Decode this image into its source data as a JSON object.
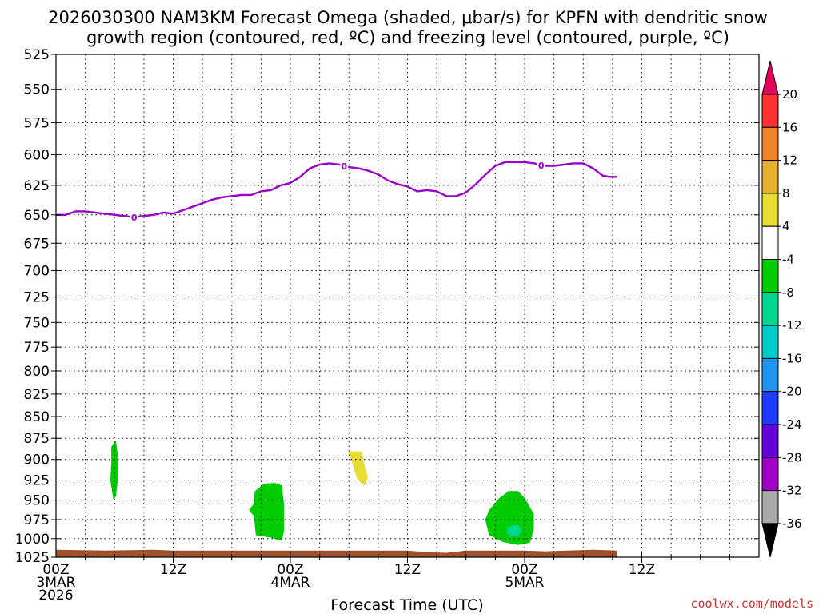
{
  "chart_data": {
    "type": "heatmap",
    "title_line1": "2026030300 NAM3KM Forecast Omega (shaded, μbar/s) for KPFN with dendritic snow",
    "title_line2": "growth region (contoured, red, ºC) and freezing level (contoured, purple, ºC)",
    "xlabel": "Forecast Time (UTC)",
    "ylabel": "",
    "x_range_hours": [
      0,
      72
    ],
    "y_range_hPa": [
      525,
      1025
    ],
    "y_ticks": [
      525,
      550,
      575,
      600,
      625,
      650,
      675,
      700,
      725,
      750,
      775,
      800,
      825,
      850,
      875,
      900,
      925,
      950,
      975,
      1000,
      1025
    ],
    "x_ticks": [
      {
        "hour": 0,
        "lines": [
          "00Z",
          "3MAR",
          "2026"
        ]
      },
      {
        "hour": 12,
        "lines": [
          "12Z"
        ]
      },
      {
        "hour": 24,
        "lines": [
          "00Z",
          "4MAR"
        ]
      },
      {
        "hour": 36,
        "lines": [
          "12Z"
        ]
      },
      {
        "hour": 48,
        "lines": [
          "00Z",
          "5MAR"
        ]
      },
      {
        "hour": 60,
        "lines": [
          "12Z"
        ]
      }
    ],
    "grid": true,
    "freezing_level": {
      "label": "0",
      "color": "#9900cc",
      "points": [
        [
          0,
          650
        ],
        [
          1,
          650
        ],
        [
          2,
          647
        ],
        [
          3,
          647
        ],
        [
          4,
          648
        ],
        [
          5,
          649
        ],
        [
          6,
          650
        ],
        [
          7,
          651
        ],
        [
          8,
          652
        ],
        [
          9,
          651
        ],
        [
          10,
          650
        ],
        [
          11,
          648
        ],
        [
          12,
          649
        ],
        [
          13,
          646
        ],
        [
          14,
          643
        ],
        [
          15,
          640
        ],
        [
          16,
          637
        ],
        [
          17,
          635
        ],
        [
          18,
          634
        ],
        [
          19,
          633
        ],
        [
          20,
          633
        ],
        [
          21,
          630
        ],
        [
          22,
          629
        ],
        [
          23,
          625
        ],
        [
          24,
          623
        ],
        [
          25,
          618
        ],
        [
          26,
          611
        ],
        [
          27,
          608
        ],
        [
          28,
          607
        ],
        [
          29,
          608
        ],
        [
          30,
          610
        ],
        [
          31,
          611
        ],
        [
          32,
          613
        ],
        [
          33,
          616
        ],
        [
          34,
          621
        ],
        [
          35,
          624
        ],
        [
          36,
          626
        ],
        [
          37,
          630
        ],
        [
          38,
          629
        ],
        [
          39,
          630
        ],
        [
          40,
          634
        ],
        [
          41,
          634
        ],
        [
          42,
          631
        ],
        [
          43,
          624
        ],
        [
          44,
          616
        ],
        [
          45,
          609
        ],
        [
          46,
          606
        ],
        [
          47,
          606
        ],
        [
          48,
          606
        ],
        [
          49,
          607
        ],
        [
          50,
          609
        ],
        [
          51,
          609
        ],
        [
          52,
          608
        ],
        [
          53,
          607
        ],
        [
          54,
          607
        ],
        [
          55,
          611
        ],
        [
          56,
          617
        ],
        [
          56.7,
          618
        ],
        [
          57.5,
          618
        ]
      ],
      "labels_at_hours": [
        8,
        29.5,
        49.7
      ]
    },
    "omega_regions": [
      {
        "level": "-4 to -8",
        "color": "#00cc00",
        "points": [
          [
            5.7,
            885
          ],
          [
            6.1,
            879
          ],
          [
            6.3,
            895
          ],
          [
            6.3,
            925
          ],
          [
            6.1,
            945
          ],
          [
            5.9,
            948
          ],
          [
            5.6,
            925
          ],
          [
            5.7,
            905
          ]
        ]
      },
      {
        "level": "4 to 8",
        "color": "#e6dc32",
        "points": [
          [
            30,
            891
          ],
          [
            31.3,
            891
          ],
          [
            31.5,
            905
          ],
          [
            31.9,
            922
          ],
          [
            31.6,
            931
          ],
          [
            30.9,
            924
          ],
          [
            30.4,
            905
          ]
        ]
      },
      {
        "level": "-4 to -8",
        "color": "#00cc00",
        "points": [
          [
            20.4,
            939
          ],
          [
            21.3,
            930
          ],
          [
            22.4,
            929
          ],
          [
            23.1,
            932
          ],
          [
            23.3,
            955
          ],
          [
            23.3,
            990
          ],
          [
            23.1,
            1002
          ],
          [
            21.9,
            998
          ],
          [
            20.5,
            995
          ],
          [
            20.3,
            970
          ],
          [
            19.8,
            963
          ],
          [
            20.3,
            955
          ]
        ]
      },
      {
        "level": "-4 to -8",
        "color": "#00cc00",
        "points": [
          [
            44.4,
            963
          ],
          [
            45.4,
            948
          ],
          [
            46.4,
            939
          ],
          [
            47.3,
            939
          ],
          [
            48,
            948
          ],
          [
            48.9,
            968
          ],
          [
            48.9,
            988
          ],
          [
            48.5,
            1005
          ],
          [
            47.3,
            1008
          ],
          [
            45.8,
            1004
          ],
          [
            44.4,
            995
          ],
          [
            44,
            975
          ]
        ]
      },
      {
        "level": "-8 to -12",
        "color": "#00d890",
        "points": [
          [
            46.3,
            985
          ],
          [
            47.2,
            982
          ],
          [
            47.7,
            988
          ],
          [
            47.4,
            995
          ],
          [
            46.6,
            997
          ],
          [
            46.2,
            991
          ]
        ]
      }
    ],
    "terrain": {
      "color": "#a0522d",
      "points": [
        [
          0,
          1015
        ],
        [
          5,
          1016
        ],
        [
          10,
          1015
        ],
        [
          12,
          1016
        ],
        [
          36,
          1016
        ],
        [
          38,
          1018
        ],
        [
          40,
          1019
        ],
        [
          42,
          1016
        ],
        [
          46,
          1016
        ],
        [
          48,
          1016
        ],
        [
          50,
          1017
        ],
        [
          55,
          1015
        ],
        [
          57.5,
          1016
        ]
      ]
    },
    "colorbar": {
      "levels": [
        20,
        16,
        12,
        8,
        4,
        -4,
        -8,
        -12,
        -16,
        -20,
        -24,
        -28,
        -32,
        -36
      ],
      "colors": [
        "#e6005c",
        "#ff3232",
        "#f08228",
        "#e6af2d",
        "#e6dc32",
        "#ffffff",
        "#00cc00",
        "#00d890",
        "#00cccc",
        "#1e96f0",
        "#1e3cff",
        "#6400dc",
        "#a000c8",
        "#aaaaaa",
        "#000000"
      ]
    }
  },
  "credit": "coolwx.com/models"
}
